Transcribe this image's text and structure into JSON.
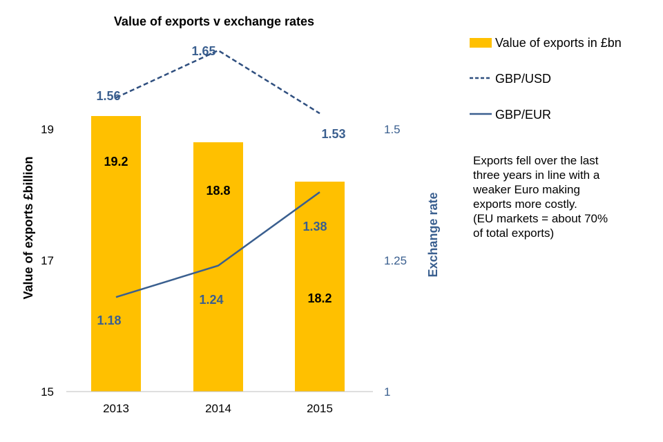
{
  "chart_data": {
    "type": "bar+line",
    "title": "Value of exports  v exchange rates",
    "categories": [
      "2013",
      "2014",
      "2015"
    ],
    "bar_series": {
      "name": "Value of exports in £bn",
      "values": [
        19.2,
        18.8,
        18.2
      ],
      "data_labels": [
        "19.2",
        "18.8",
        "18.2"
      ],
      "color": "#FFC000"
    },
    "line_series": [
      {
        "name": "GBP/USD",
        "values": [
          1.56,
          1.65,
          1.53
        ],
        "data_labels": [
          "1.56",
          "1.65",
          "1.53"
        ],
        "style": "dashed",
        "color": "#2F4F7F"
      },
      {
        "name": "GBP/EUR",
        "values": [
          1.18,
          1.24,
          1.38
        ],
        "data_labels": [
          "1.18",
          "1.24",
          "1.38"
        ],
        "style": "solid",
        "color": "#3A5F8F"
      }
    ],
    "ylabel": "Value of exports £billion",
    "ylim": [
      15,
      19
    ],
    "yticks": [
      "15",
      "17",
      "19"
    ],
    "y2label": "Exchange rate",
    "y2lim": [
      1,
      1.5
    ],
    "y2ticks": [
      "1",
      "1.25",
      "1.5"
    ],
    "legend_position": "right",
    "grid": false
  },
  "annotation": {
    "lines": [
      "Exports fell over the last",
      "three years in line with a",
      "weaker Euro making",
      "exports more costly.",
      "(EU markets = about 70%",
      "of total exports)"
    ]
  },
  "colors": {
    "accent_text": "#3A5F8F",
    "axis": "#BFBFBF"
  }
}
